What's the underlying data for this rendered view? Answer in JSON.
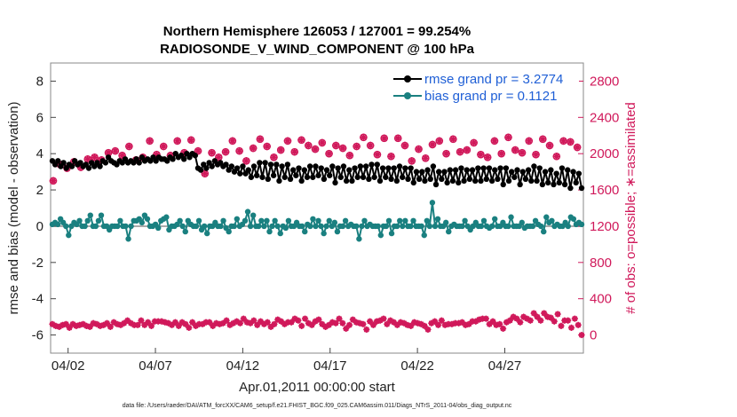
{
  "colors": {
    "rmse": "#000000",
    "bias": "#1a8080",
    "obs": "#d0185a",
    "zero_line": "#aaaaaa",
    "legend_text": "#1f5fd6"
  },
  "chart_data": {
    "type": "line",
    "title": "Northern Hemisphere 126053 / 127001 = 99.254%",
    "subtitle": "RADIOSONDE_V_WIND_COMPONENT @ 100 hPa",
    "ylabel": "rmse and bias (model - observation)",
    "ylabel_right": "# of obs: o=possible; ∗=assimilated",
    "xlabel": "Apr.01,2011 00:00:00 start",
    "footnote": "data file: /Users/raeder/DAI/ATM_forcXX/CAM6_setup/f.e21.FHIST_BGC.f09_025.CAM6assim.011/Diags_NTrS_2011-04/obs_diag_output.nc",
    "ylim": [
      -7,
      9
    ],
    "y_ticks": [
      -6,
      -4,
      -2,
      0,
      2,
      4,
      6,
      8
    ],
    "y_tick_labels": [
      "-6",
      "-4",
      "-2",
      "0",
      "2",
      "4",
      "6",
      "8"
    ],
    "ylim_right": [
      -200,
      3000
    ],
    "y2_ticks": [
      0,
      400,
      800,
      1200,
      1600,
      2000,
      2400,
      2800
    ],
    "y2_tick_labels": [
      "0",
      "400",
      "800",
      "1200",
      "1600",
      "2000",
      "2400",
      "2800"
    ],
    "xlim": [
      0,
      30.5
    ],
    "x_ticks": [
      1,
      6,
      11,
      16,
      21,
      26
    ],
    "x_tick_labels": [
      "04/02",
      "04/07",
      "04/12",
      "04/17",
      "04/22",
      "04/27"
    ],
    "x_step_days": 0.25,
    "legend": [
      {
        "name": "rmse grand pr = 3.2774",
        "series": "rmse"
      },
      {
        "name": "bias grand pr = 0.1121",
        "series": "bias"
      }
    ],
    "series": [
      {
        "name": "rmse",
        "axis": "left",
        "values": [
          3.6,
          3.4,
          3.6,
          3.3,
          3.5,
          3.2,
          3.4,
          3.3,
          3.6,
          3.4,
          3.5,
          3.3,
          3.4,
          3.2,
          3.5,
          3.3,
          3.5,
          3.3,
          3.6,
          3.5,
          3.8,
          3.6,
          3.5,
          3.4,
          3.6,
          3.5,
          3.7,
          3.5,
          3.6,
          3.5,
          3.7,
          3.5,
          3.8,
          3.6,
          3.7,
          3.6,
          3.8,
          3.6,
          3.8,
          3.7,
          3.7,
          3.6,
          3.8,
          3.7,
          4.0,
          3.8,
          3.9,
          3.7,
          4.0,
          3.8,
          4.0,
          3.9,
          3.2,
          3.1,
          3.4,
          3.2,
          3.5,
          3.3,
          3.6,
          3.4,
          3.5,
          3.3,
          3.4,
          3.1,
          3.3,
          3.0,
          3.2,
          2.9,
          3.3,
          2.9,
          3.1,
          2.7,
          3.3,
          2.8,
          3.5,
          2.7,
          3.5,
          2.6,
          3.4,
          2.8,
          3.4,
          2.5,
          3.3,
          2.7,
          3.4,
          2.6,
          3.1,
          2.8,
          3.2,
          2.5,
          3.1,
          2.7,
          3.3,
          2.7,
          3.3,
          2.8,
          3.2,
          2.6,
          3.1,
          2.8,
          3.3,
          2.4,
          3.2,
          2.7,
          3.3,
          2.5,
          3.1,
          2.5,
          3.2,
          2.7,
          3.3,
          2.7,
          3.3,
          2.6,
          3.4,
          2.7,
          3.4,
          2.5,
          3.2,
          2.7,
          3.2,
          2.6,
          3.2,
          2.5,
          3.3,
          2.7,
          3.2,
          2.6,
          3.2,
          2.4,
          3.0,
          2.6,
          3.0,
          2.5,
          3.1,
          2.6,
          3.3,
          2.3,
          3.0,
          2.6,
          3.0,
          2.4,
          3.1,
          2.5,
          3.1,
          2.4,
          3.2,
          2.5,
          3.1,
          2.6,
          3.1,
          2.5,
          3.2,
          2.5,
          3.2,
          2.6,
          3.2,
          2.5,
          3.1,
          2.6,
          3.2,
          2.3,
          3.2,
          2.5,
          3.0,
          2.7,
          3.1,
          2.3,
          3.0,
          2.6,
          3.1,
          2.5,
          3.3,
          2.5,
          3.2,
          2.3,
          3.0,
          2.4,
          3.1,
          2.3,
          2.9,
          2.4,
          3.2,
          2.3,
          3.1,
          2.1,
          3.0,
          2.4,
          2.9,
          2.1
        ]
      },
      {
        "name": "bias",
        "axis": "left",
        "values": [
          0.1,
          0.2,
          0.1,
          0.4,
          0.2,
          0.0,
          -0.5,
          0.0,
          0.2,
          0.1,
          0.3,
          0.0,
          0.0,
          0.3,
          0.6,
          0.0,
          0.0,
          0.3,
          0.6,
          0.0,
          0.0,
          -0.2,
          0.0,
          0.0,
          0.0,
          0.3,
          0.0,
          0.0,
          -0.7,
          0.0,
          0.3,
          0.3,
          0.4,
          0.2,
          0.6,
          0.4,
          0.0,
          0.0,
          0.1,
          -0.1,
          0.3,
          0.4,
          0.5,
          -0.2,
          0.0,
          0.0,
          0.1,
          0.3,
          0.0,
          -0.3,
          0.3,
          0.1,
          0.0,
          0.0,
          0.3,
          -0.2,
          0.0,
          -0.4,
          0.0,
          0.0,
          0.2,
          0.0,
          0.0,
          0.3,
          -0.1,
          -0.3,
          0.0,
          0.0,
          0.4,
          0.0,
          0.1,
          0.3,
          0.8,
          0.0,
          0.6,
          0.0,
          0.0,
          0.3,
          0.0,
          0.3,
          -0.3,
          0.0,
          0.3,
          0.0,
          -0.4,
          0.0,
          -0.1,
          0.3,
          0.0,
          0.0,
          0.2,
          0.0,
          0.0,
          -0.3,
          0.1,
          0.0,
          0.4,
          0.0,
          0.3,
          0.0,
          -0.4,
          0.0,
          0.3,
          0.0,
          0.2,
          -0.3,
          0.0,
          0.0,
          0.3,
          0.0,
          0.1,
          0.0,
          0.0,
          -0.7,
          0.0,
          0.3,
          0.0,
          0.1,
          0.0,
          0.0,
          0.0,
          -0.5,
          0.0,
          0.0,
          0.3,
          -0.4,
          0.0,
          0.0,
          0.3,
          0.0,
          0.3,
          0.0,
          0.0,
          0.3,
          0.0,
          0.0,
          0.0,
          -0.5,
          0.3,
          0.0,
          1.3,
          0.0,
          0.4,
          0.0,
          0.0,
          0.2,
          -0.3,
          0.0,
          0.1,
          0.0,
          0.0,
          0.0,
          0.3,
          0.0,
          -0.2,
          0.0,
          0.2,
          0.0,
          0.0,
          0.3,
          0.0,
          -0.1,
          0.0,
          0.4,
          0.0,
          0.0,
          0.2,
          0.0,
          0.0,
          0.5,
          0.0,
          0.0,
          0.0,
          0.2,
          -0.1,
          0.0,
          0.0,
          0.0,
          0.3,
          0.1,
          0.0,
          -0.3,
          0.5,
          0.2,
          0.3,
          0.0,
          0.1,
          0.0,
          0.0,
          0.2,
          0.0,
          0.5,
          0.4,
          0.1,
          0.2,
          0.1
        ]
      },
      {
        "name": "possible",
        "axis": "right",
        "marker": "circle",
        "values": [
          1700,
          1880,
          1840,
          1910,
          1850,
          1940,
          1960,
          1930,
          2010,
          2030,
          1980,
          2080,
          1930,
          1960,
          2140,
          1990,
          2080,
          1980,
          2140,
          2010,
          2150,
          2030,
          1780,
          2010,
          1960,
          2020,
          2140,
          2030,
          1920,
          2060,
          2160,
          2080,
          1960,
          2040,
          2140,
          2020,
          2150,
          2090,
          2050,
          2120,
          2000,
          2090,
          2060,
          1980,
          2080,
          2180,
          2090,
          1990,
          2170,
          1970,
          2170,
          2090,
          1920,
          2050,
          1950,
          2100,
          2140,
          2000,
          2160,
          2020,
          2040,
          2120,
          1990,
          1960,
          2140,
          2000,
          2180,
          2040,
          2010,
          2140,
          1990,
          2160,
          2090,
          1970,
          2140,
          2130,
          2070
        ]
      },
      {
        "name": "assimilated",
        "axis": "right",
        "marker": "star",
        "values": [
          1700,
          1880,
          1840,
          1910,
          1850,
          1940,
          1960,
          1930,
          2010,
          2030,
          1980,
          2080,
          1930,
          1960,
          2140,
          1990,
          2080,
          1980,
          2140,
          2010,
          2150,
          2030,
          1780,
          2010,
          1960,
          2020,
          2140,
          2030,
          1920,
          2060,
          2160,
          2080,
          1960,
          2040,
          2140,
          2020,
          2150,
          2090,
          2050,
          2120,
          2000,
          2090,
          2060,
          1980,
          2080,
          2180,
          2090,
          1990,
          2170,
          1970,
          2170,
          2090,
          1920,
          2050,
          1950,
          2100,
          2140,
          2000,
          2160,
          2020,
          2040,
          2120,
          1990,
          1960,
          2140,
          2000,
          2180,
          2040,
          2010,
          2140,
          1990,
          2160,
          2090,
          1970,
          2140,
          2130,
          2070
        ]
      }
    ],
    "bottom_series": {
      "name": "bottom-obs",
      "axis": "right",
      "values": [
        120,
        100,
        90,
        110,
        120,
        80,
        120,
        100,
        110,
        120,
        100,
        90,
        130,
        120,
        100,
        110,
        130,
        90,
        140,
        120,
        110,
        130,
        160,
        130,
        110,
        110,
        160,
        110,
        140,
        100,
        150,
        150,
        150,
        140,
        130,
        110,
        140,
        100,
        140,
        120,
        80,
        140,
        100,
        120,
        120,
        140,
        140,
        100,
        130,
        120,
        130,
        160,
        110,
        130,
        150,
        130,
        180,
        140,
        130,
        160,
        110,
        150,
        120,
        140,
        90,
        120,
        170,
        150,
        120,
        140,
        140,
        180,
        160,
        100,
        180,
        130,
        110,
        150,
        170,
        120,
        90,
        110,
        140,
        130,
        180,
        130,
        70,
        110,
        170,
        140,
        130,
        120,
        60,
        150,
        110,
        150,
        160,
        180,
        120,
        160,
        140,
        110,
        140,
        130,
        110,
        100,
        140,
        130,
        120,
        100,
        60,
        130,
        150,
        110,
        160,
        110,
        120,
        120,
        130,
        130,
        140,
        110,
        120,
        150,
        150,
        170,
        180,
        180,
        120,
        150,
        110,
        120,
        70,
        140,
        160,
        200,
        180,
        140,
        200,
        180,
        160,
        240,
        200,
        160,
        240,
        200,
        190,
        150,
        230,
        100,
        160,
        160,
        80,
        180,
        110,
        0
      ]
    }
  }
}
